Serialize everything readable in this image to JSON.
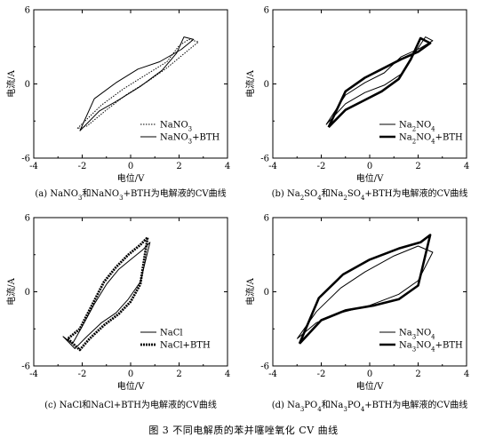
{
  "figure_caption": "图 3   不同电解质的苯并噻唑氧化 CV 曲线",
  "chart_data": [
    {
      "type": "line",
      "panel": "a",
      "caption": "(a) NaNO3和NaNO3+BTH为电解液的CV曲线",
      "xlabel": "电位/V",
      "ylabel": "电流/A",
      "xlim": [
        -4,
        4
      ],
      "ylim": [
        -6,
        6
      ],
      "xticks": [
        "-4",
        "-2",
        "0",
        "2",
        "4"
      ],
      "yticks": [
        "-6",
        "0",
        "6"
      ],
      "legend_position": "lower-right",
      "series": [
        {
          "name": "NaNO3",
          "style": "dotted",
          "x": [
            -2.2,
            -1.2,
            -0.3,
            0.6,
            1.5,
            2.0,
            2.4,
            2.8,
            2.3,
            1.5,
            0.7,
            -0.2,
            -1.0,
            -1.8,
            -2.2
          ],
          "y": [
            -3.6,
            -1.7,
            -0.4,
            0.7,
            1.8,
            3.1,
            3.6,
            3.4,
            2.6,
            1.3,
            0.2,
            -0.9,
            -2.1,
            -3.4,
            -3.6
          ]
        },
        {
          "name": "NaNO3+BTH",
          "style": "solid",
          "x": [
            -2.1,
            -1.3,
            -0.5,
            0.4,
            1.3,
            1.9,
            2.2,
            2.6,
            2.1,
            1.2,
            0.3,
            -0.6,
            -1.5,
            -2.1
          ],
          "y": [
            -3.8,
            -2.2,
            -1.3,
            -0.2,
            1.1,
            2.5,
            3.8,
            3.6,
            2.8,
            1.8,
            1.2,
            0.1,
            -1.2,
            -3.8
          ]
        }
      ]
    },
    {
      "type": "line",
      "panel": "b",
      "caption": "(b) Na2SO4和Na2SO4+BTH为电解液的CV曲线",
      "xlabel": "电位/V",
      "ylabel": "电流/A",
      "xlim": [
        -4,
        4
      ],
      "ylim": [
        -6,
        6
      ],
      "xticks": [
        "-4",
        "-2",
        "0",
        "2",
        "4"
      ],
      "yticks": [
        "-6",
        "0",
        "6"
      ],
      "legend_position": "lower-right",
      "series": [
        {
          "name": "Na2NO4",
          "style": "solid",
          "x": [
            -1.8,
            -1.0,
            -0.2,
            0.6,
            1.3,
            1.8,
            2.3,
            2.6,
            2.1,
            1.3,
            0.6,
            -0.2,
            -1.0,
            -1.8
          ],
          "y": [
            -3.3,
            -1.6,
            -0.7,
            -0.1,
            0.8,
            2.3,
            3.8,
            3.5,
            2.9,
            2.2,
            0.9,
            0.1,
            -0.9,
            -3.3
          ]
        },
        {
          "name": "Na2NO4+BTH",
          "style": "thick",
          "x": [
            -1.7,
            -1.0,
            -0.3,
            0.5,
            1.2,
            1.7,
            2.1,
            2.5,
            2.0,
            1.3,
            0.5,
            -0.2,
            -1.0,
            -1.7
          ],
          "y": [
            -3.5,
            -2.1,
            -1.4,
            -0.6,
            0.4,
            2.0,
            3.7,
            3.3,
            2.6,
            2.0,
            1.2,
            0.5,
            -0.6,
            -3.5
          ]
        }
      ]
    },
    {
      "type": "line",
      "panel": "c",
      "caption": "(c) NaCl和NaCl+BTH为电解液的CV曲线",
      "xlabel": "电位/V",
      "ylabel": "电流/A",
      "xlim": [
        -4,
        4
      ],
      "ylim": [
        -6,
        6
      ],
      "xticks": [
        "-4",
        "-2",
        "0",
        "2",
        "4"
      ],
      "yticks": [
        "-6",
        "0",
        "6"
      ],
      "legend_position": "lower-right",
      "series": [
        {
          "name": "NaCl",
          "style": "solid",
          "x": [
            -2.8,
            -2.3,
            -1.8,
            -1.2,
            -0.6,
            -0.1,
            0.4,
            0.8,
            0.5,
            0.0,
            -0.5,
            -1.0,
            -1.5,
            -2.0,
            -2.4,
            -2.8
          ],
          "y": [
            -3.6,
            -4.6,
            -3.6,
            -2.5,
            -1.7,
            -0.6,
            0.8,
            4.0,
            3.4,
            2.6,
            1.8,
            0.6,
            -1.0,
            -2.8,
            -4.2,
            -3.6
          ]
        },
        {
          "name": "NaCl+BTH",
          "style": "dashed-thick",
          "x": [
            -2.6,
            -2.1,
            -1.7,
            -1.1,
            -0.5,
            0.0,
            0.4,
            0.7,
            0.4,
            -0.1,
            -0.6,
            -1.1,
            -1.6,
            -2.1,
            -2.6
          ],
          "y": [
            -3.8,
            -4.7,
            -3.8,
            -2.7,
            -1.8,
            -0.8,
            0.6,
            4.4,
            3.8,
            3.0,
            2.0,
            0.8,
            -1.1,
            -3.0,
            -3.8
          ]
        }
      ]
    },
    {
      "type": "line",
      "panel": "d",
      "caption": "(d) Na3PO4和Na3PO4+BTH为电解液的CV曲线",
      "xlabel": "电位/V",
      "ylabel": "电流/A",
      "xlim": [
        -4,
        4
      ],
      "ylim": [
        -6,
        6
      ],
      "xticks": [
        "-4",
        "-2",
        "0",
        "2",
        "4"
      ],
      "yticks": [
        "-6",
        "0",
        "6"
      ],
      "legend_position": "lower-right",
      "series": [
        {
          "name": "Na3NO4",
          "style": "solid",
          "x": [
            -3.0,
            -2.2,
            -1.2,
            0.0,
            1.2,
            2.0,
            2.6,
            2.0,
            1.0,
            -0.2,
            -1.2,
            -2.2,
            -3.0
          ],
          "y": [
            -3.8,
            -2.5,
            -1.7,
            -1.1,
            -0.2,
            0.9,
            3.2,
            3.7,
            2.9,
            1.6,
            0.3,
            -1.6,
            -3.8
          ]
        },
        {
          "name": "Na3NO4+BTH",
          "style": "thick",
          "x": [
            -2.9,
            -2.0,
            -1.0,
            0.2,
            1.2,
            2.0,
            2.5,
            2.1,
            1.2,
            0.0,
            -1.1,
            -2.1,
            -2.9
          ],
          "y": [
            -4.2,
            -2.3,
            -1.5,
            -1.1,
            -0.6,
            0.5,
            4.6,
            4.0,
            3.5,
            2.6,
            1.4,
            -0.5,
            -4.2
          ]
        }
      ]
    }
  ]
}
